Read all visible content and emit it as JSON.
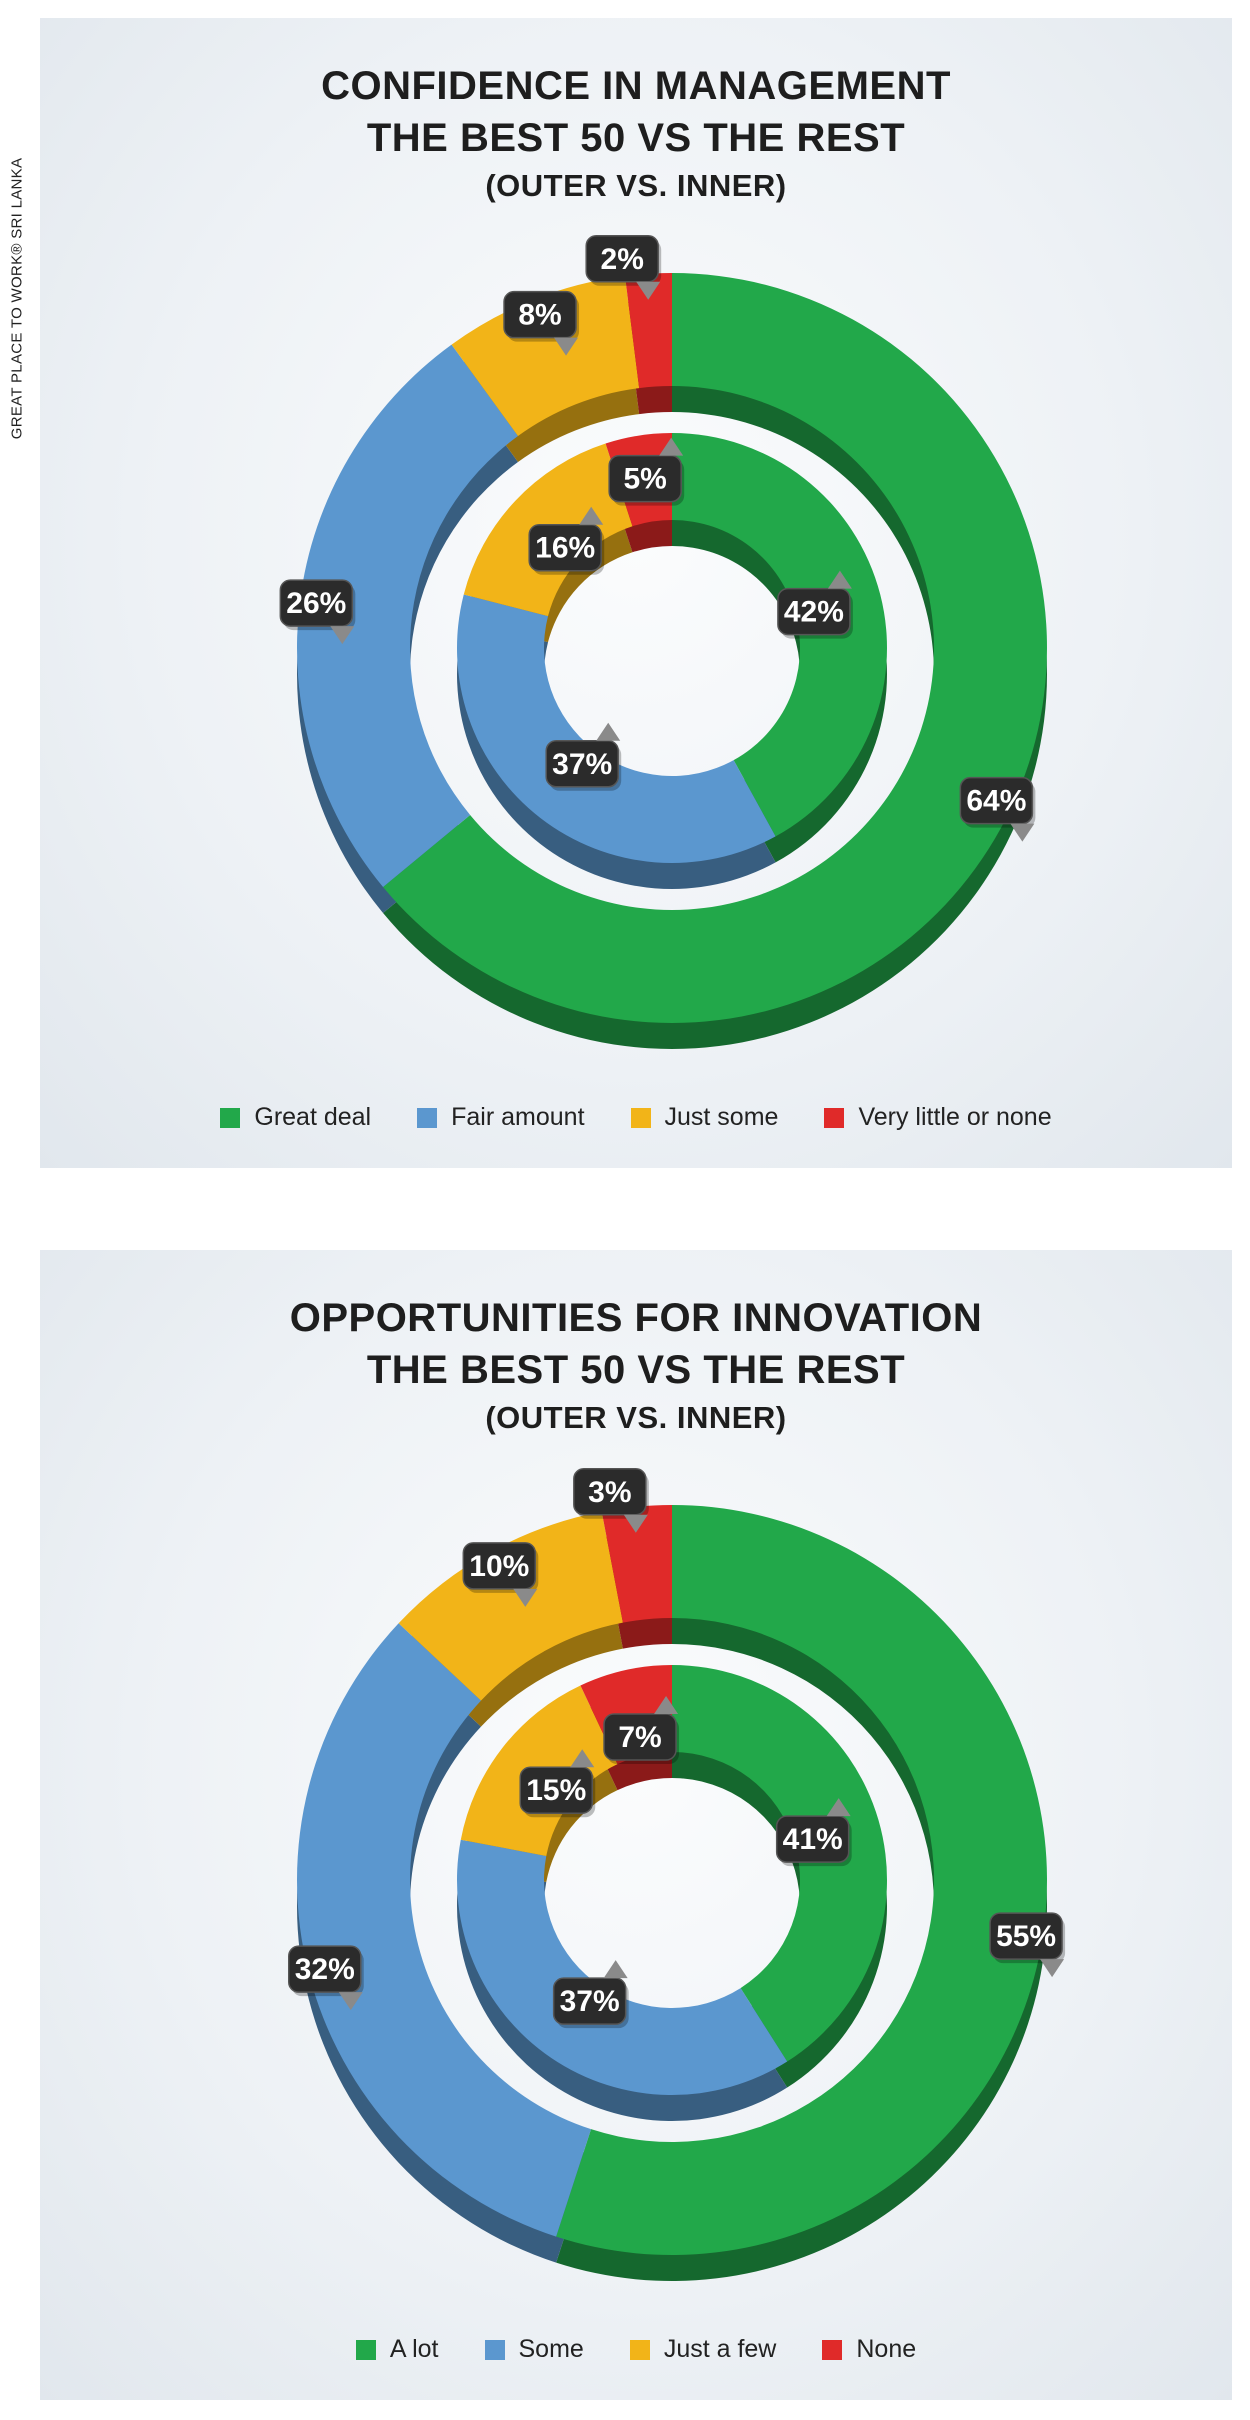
{
  "side_label": "GREAT PLACE TO WORK® SRI LANKA",
  "chart_data": [
    {
      "type": "pie",
      "variant": "nested-donut",
      "title": "CONFIDENCE IN MANAGEMENT",
      "subtitle": "THE BEST 50 VS THE REST",
      "subtitle2": "(OUTER VS. INNER)",
      "categories": [
        "Great deal",
        "Fair amount",
        "Just some",
        "Very little or none"
      ],
      "colors": [
        "#22a84a",
        "#5b97cf",
        "#f2b418",
        "#e02a29"
      ],
      "series": [
        {
          "name": "THE BEST 50",
          "ring": "outer",
          "values": [
            64,
            26,
            8,
            2
          ],
          "labels": [
            "64%",
            "26%",
            "8%",
            "2%"
          ]
        },
        {
          "name": "THE REST",
          "ring": "inner",
          "values": [
            42,
            37,
            16,
            5
          ],
          "labels": [
            "42%",
            "37%",
            "16%",
            "5%"
          ]
        }
      ],
      "legend_position": "bottom"
    },
    {
      "type": "pie",
      "variant": "nested-donut",
      "title": "OPPORTUNITIES FOR INNOVATION",
      "subtitle": "THE BEST 50 VS THE REST",
      "subtitle2": "(OUTER VS. INNER)",
      "categories": [
        "A lot",
        "Some",
        "Just a few",
        "None"
      ],
      "colors": [
        "#22a84a",
        "#5b97cf",
        "#f2b418",
        "#e02a29"
      ],
      "series": [
        {
          "name": "THE BEST 50",
          "ring": "outer",
          "values": [
            55,
            32,
            10,
            3
          ],
          "labels": [
            "55%",
            "32%",
            "10%",
            "3%"
          ]
        },
        {
          "name": "THE REST",
          "ring": "inner",
          "values": [
            41,
            37,
            15,
            7
          ],
          "labels": [
            "41%",
            "37%",
            "15%",
            "7%"
          ]
        }
      ],
      "legend_position": "bottom"
    }
  ]
}
